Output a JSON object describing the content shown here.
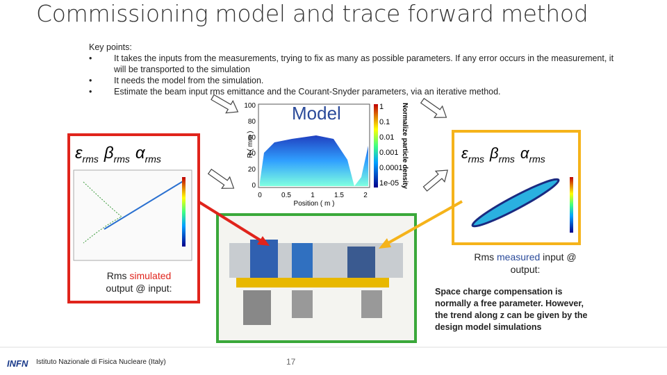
{
  "header": {
    "title": "Commissioning model and trace forward method"
  },
  "key_points": {
    "heading": "Key points:",
    "bullet": "•",
    "items": [
      "It takes the inputs from the measurements, trying to fix as many as possible parameters. If any error occurs in the measurement, it will be transported to the simulation",
      "It needs the model from the simulation.",
      "Estimate the beam input rms emittance and the Courant-Snyder parameters, via an iterative method."
    ]
  },
  "model_plot": {
    "label": "Model",
    "y_axis_label": "R ( mm )",
    "x_axis_label": "Position ( m )",
    "colorbar_label": "Normalize particle density",
    "y_ticks": [
      "100",
      "80",
      "60",
      "40",
      "20",
      "0"
    ],
    "x_ticks": [
      "0",
      "0.5",
      "1",
      "1.5",
      "2"
    ],
    "colorbar_ticks": [
      "1",
      "0.1",
      "0.01",
      "0.001",
      "0.0001",
      "1e-05"
    ]
  },
  "simulated_panel": {
    "params": [
      {
        "symbol": "ε",
        "sub": "rms"
      },
      {
        "symbol": "β",
        "sub": "rms"
      },
      {
        "symbol": "α",
        "sub": "rms"
      }
    ],
    "caption_start": "Rms",
    "caption_highlight": "simulated",
    "caption_end": "output @ input:"
  },
  "measured_panel": {
    "params": [
      {
        "symbol": "ε",
        "sub": "rms"
      },
      {
        "symbol": "β",
        "sub": "rms"
      },
      {
        "symbol": "α",
        "sub": "rms"
      }
    ],
    "caption_start": "Rms",
    "caption_highlight": "measured",
    "caption_end": "input @ output:"
  },
  "note": "Space charge compensation is normally a free parameter. However, the trend along z can be given by the design model simulations",
  "footer": {
    "logo": "INFN",
    "institute": "Istituto Nazionale di Fisica Nucleare (Italy)",
    "page_number": "17"
  }
}
